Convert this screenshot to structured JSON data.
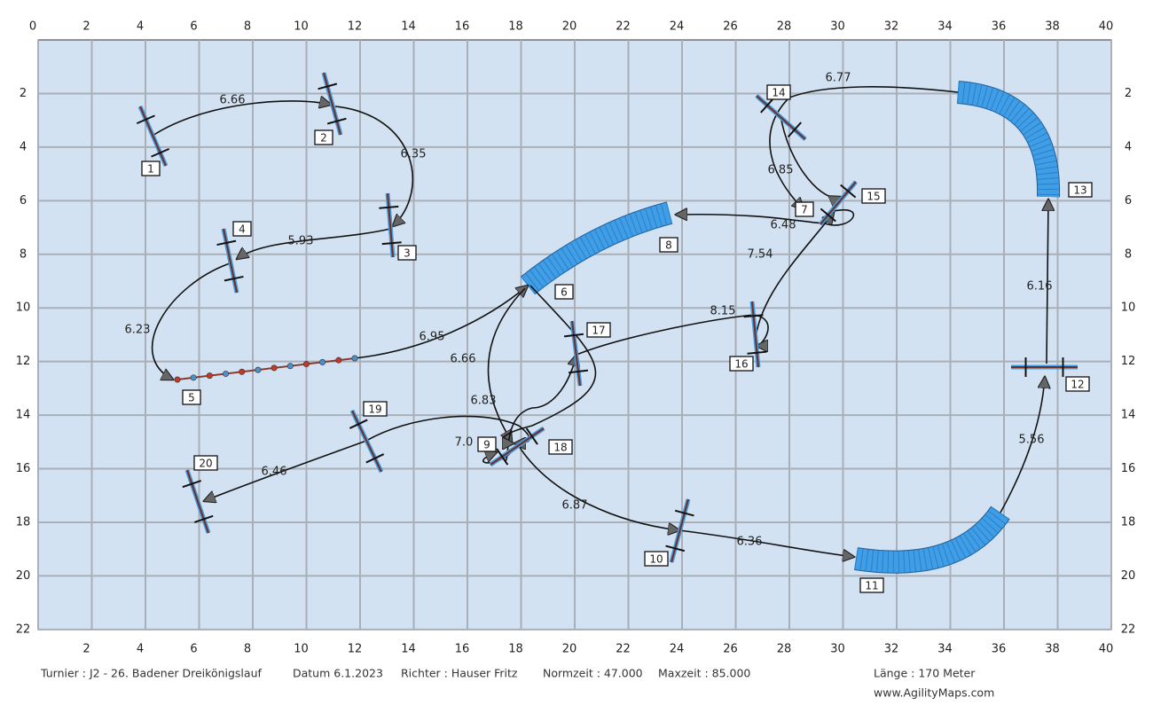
{
  "axes": {
    "top_ticks": [
      0,
      2,
      4,
      6,
      8,
      10,
      12,
      14,
      16,
      18,
      20,
      22,
      24,
      26,
      28,
      30,
      32,
      34,
      36,
      38,
      40
    ],
    "bottom_ticks": [
      2,
      4,
      6,
      8,
      10,
      12,
      14,
      16,
      18,
      20,
      22,
      24,
      26,
      28,
      30,
      32,
      34,
      36,
      38,
      40
    ],
    "left_ticks": [
      2,
      4,
      6,
      8,
      10,
      12,
      14,
      16,
      18,
      20,
      22
    ],
    "right_ticks": [
      2,
      4,
      6,
      8,
      10,
      12,
      14,
      16,
      18,
      20,
      22
    ]
  },
  "obstacles": [
    "1",
    "2",
    "3",
    "4",
    "5",
    "6",
    "7",
    "8",
    "9",
    "10",
    "11",
    "12",
    "13",
    "14",
    "15",
    "16",
    "17",
    "18",
    "19",
    "20"
  ],
  "distances": [
    "6.66",
    "6.35",
    "5.93",
    "6.23",
    "6.95",
    "6.66",
    "6.83",
    "7.0",
    "6.46",
    "6.87",
    "6.36",
    "5.56",
    "6.16",
    "6.77",
    "6.85",
    "6.48",
    "7.54",
    "8.15"
  ],
  "footer": {
    "tournament": "Turnier : J2 - 26. Badener Dreikönigslauf",
    "date": "Datum 6.1.2023",
    "judge": "Richter : Hauser Fritz",
    "standard_time": "Normzeit : 47.000",
    "max_time": "Maxzeit : 85.000",
    "length": "Länge : 170 Meter",
    "website": "www.AgilityMaps.com"
  }
}
